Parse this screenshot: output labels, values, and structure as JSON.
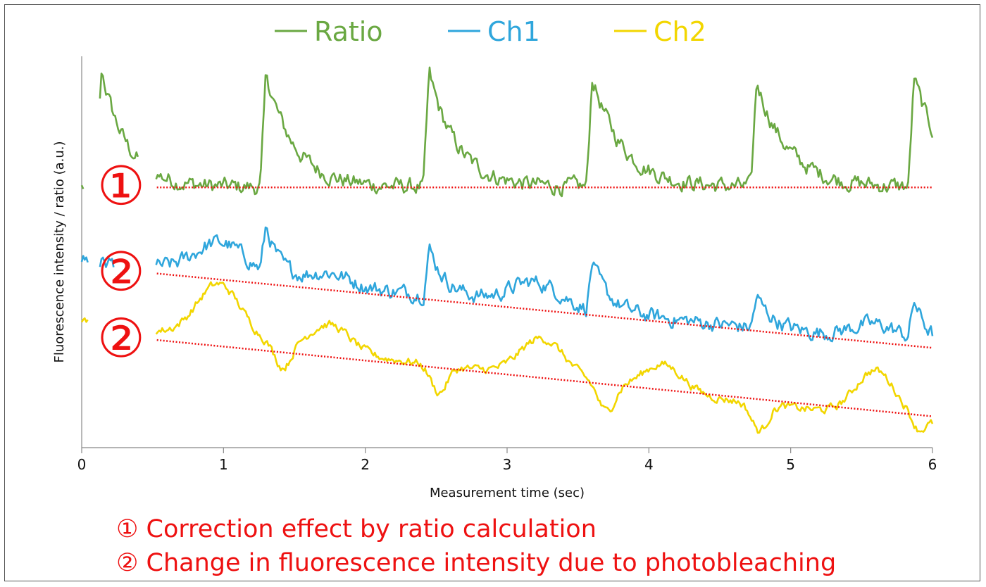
{
  "chart_data": {
    "type": "line",
    "title": "",
    "xlabel": "Measurement time (sec)",
    "ylabel": "Fluorescence intensity / ratio (a.u.)",
    "xlim": [
      0,
      6
    ],
    "ylim": [
      0,
      100
    ],
    "x_ticks": [
      "0",
      "1",
      "2",
      "3",
      "4",
      "5",
      "6"
    ],
    "legend": [
      "Ratio",
      "Ch1",
      "Ch2"
    ],
    "legend_position": "top",
    "colors": {
      "Ratio": "#6aa842",
      "Ch1": "#2fa6dc",
      "Ch2": "#f2d600",
      "annotation": "#ee1111"
    },
    "series": [
      {
        "name": "Ratio",
        "base": 66.5,
        "baseline_noise": 1.6,
        "peaks": [
          {
            "t": 0.14,
            "amp": 30,
            "decay": 0.18
          },
          {
            "t": 1.3,
            "amp": 29,
            "decay": 0.2
          },
          {
            "t": 2.45,
            "amp": 29,
            "decay": 0.2
          },
          {
            "t": 3.6,
            "amp": 28,
            "decay": 0.22
          },
          {
            "t": 4.76,
            "amp": 27,
            "decay": 0.22
          },
          {
            "t": 5.87,
            "amp": 28,
            "decay": 0.2
          }
        ],
        "gaps": [
          [
            0.02,
            0.12
          ],
          [
            0.4,
            0.52
          ]
        ]
      },
      {
        "name": "Ch1",
        "start": 48.0,
        "end": 26.0,
        "baseline_noise": 1.5,
        "waves": [
          {
            "t": 0.98,
            "amp": 8,
            "w": 0.25
          },
          {
            "t": 1.75,
            "amp": 3,
            "w": 0.2
          },
          {
            "t": 3.2,
            "amp": 6,
            "w": 0.25
          },
          {
            "t": 5.6,
            "amp": 4,
            "w": 0.25
          }
        ],
        "peaks": [
          {
            "t": 1.3,
            "amp": 12,
            "decay": 0.1
          },
          {
            "t": 2.45,
            "amp": 12,
            "decay": 0.12
          },
          {
            "t": 3.6,
            "amp": 12,
            "decay": 0.12
          },
          {
            "t": 4.76,
            "amp": 8,
            "decay": 0.12
          },
          {
            "t": 5.87,
            "amp": 10,
            "decay": 0.1
          }
        ],
        "gaps": [
          [
            0.05,
            0.12
          ],
          [
            0.23,
            0.52
          ]
        ]
      },
      {
        "name": "Ch2",
        "start": 32.0,
        "end": 6.0,
        "baseline_noise": 0.8,
        "waves": [
          {
            "t": 0.97,
            "amp": 14,
            "w": 0.22
          },
          {
            "t": 1.75,
            "amp": 7,
            "w": 0.2
          },
          {
            "t": 3.25,
            "amp": 10,
            "w": 0.22
          },
          {
            "t": 4.1,
            "amp": 7,
            "w": 0.2
          },
          {
            "t": 5.6,
            "amp": 12,
            "w": 0.2
          }
        ],
        "dips": [
          {
            "t": 1.42,
            "amp": 6,
            "w": 0.08
          },
          {
            "t": 2.52,
            "amp": 7,
            "w": 0.08
          },
          {
            "t": 3.7,
            "amp": 7,
            "w": 0.08
          },
          {
            "t": 4.78,
            "amp": 7,
            "w": 0.08
          },
          {
            "t": 5.9,
            "amp": 3,
            "w": 0.06
          }
        ],
        "gaps": [
          [
            0.05,
            0.52
          ]
        ]
      }
    ],
    "annotations": [
      {
        "label": "①",
        "line": {
          "x0": 0.53,
          "y0": 66.5,
          "x1": 6.0,
          "y1": 66.5
        }
      },
      {
        "label": "②",
        "line": {
          "x0": 0.53,
          "y0": 44.5,
          "x1": 6.0,
          "y1": 25.5
        }
      },
      {
        "label": "②",
        "line": {
          "x0": 0.53,
          "y0": 27.5,
          "x1": 6.0,
          "y1": 8.0
        }
      }
    ]
  },
  "captions": [
    "① Correction effect by ratio calculation",
    "② Change in fluorescence intensity due to photobleaching"
  ]
}
